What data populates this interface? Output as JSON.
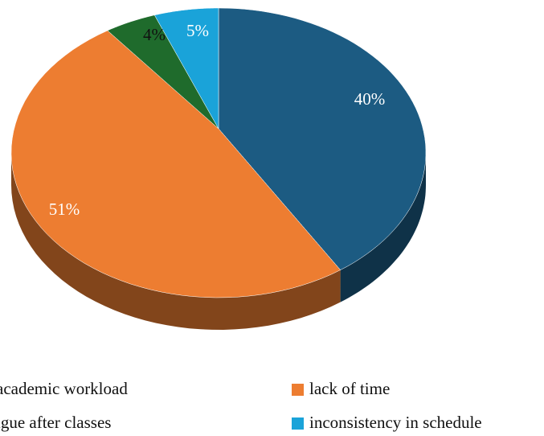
{
  "chart_data": {
    "type": "pie",
    "categories": [
      "academic workload",
      "lack of time",
      "igue after classes",
      "inconsistency in schedule"
    ],
    "values": [
      40,
      51,
      4,
      5
    ],
    "value_labels": [
      "40%",
      "51%",
      "4%",
      "5%"
    ],
    "colors": [
      "#1c5b82",
      "#ed7d31",
      "#1f6b2c",
      "#1aa3d9"
    ],
    "legend": "bottom"
  }
}
